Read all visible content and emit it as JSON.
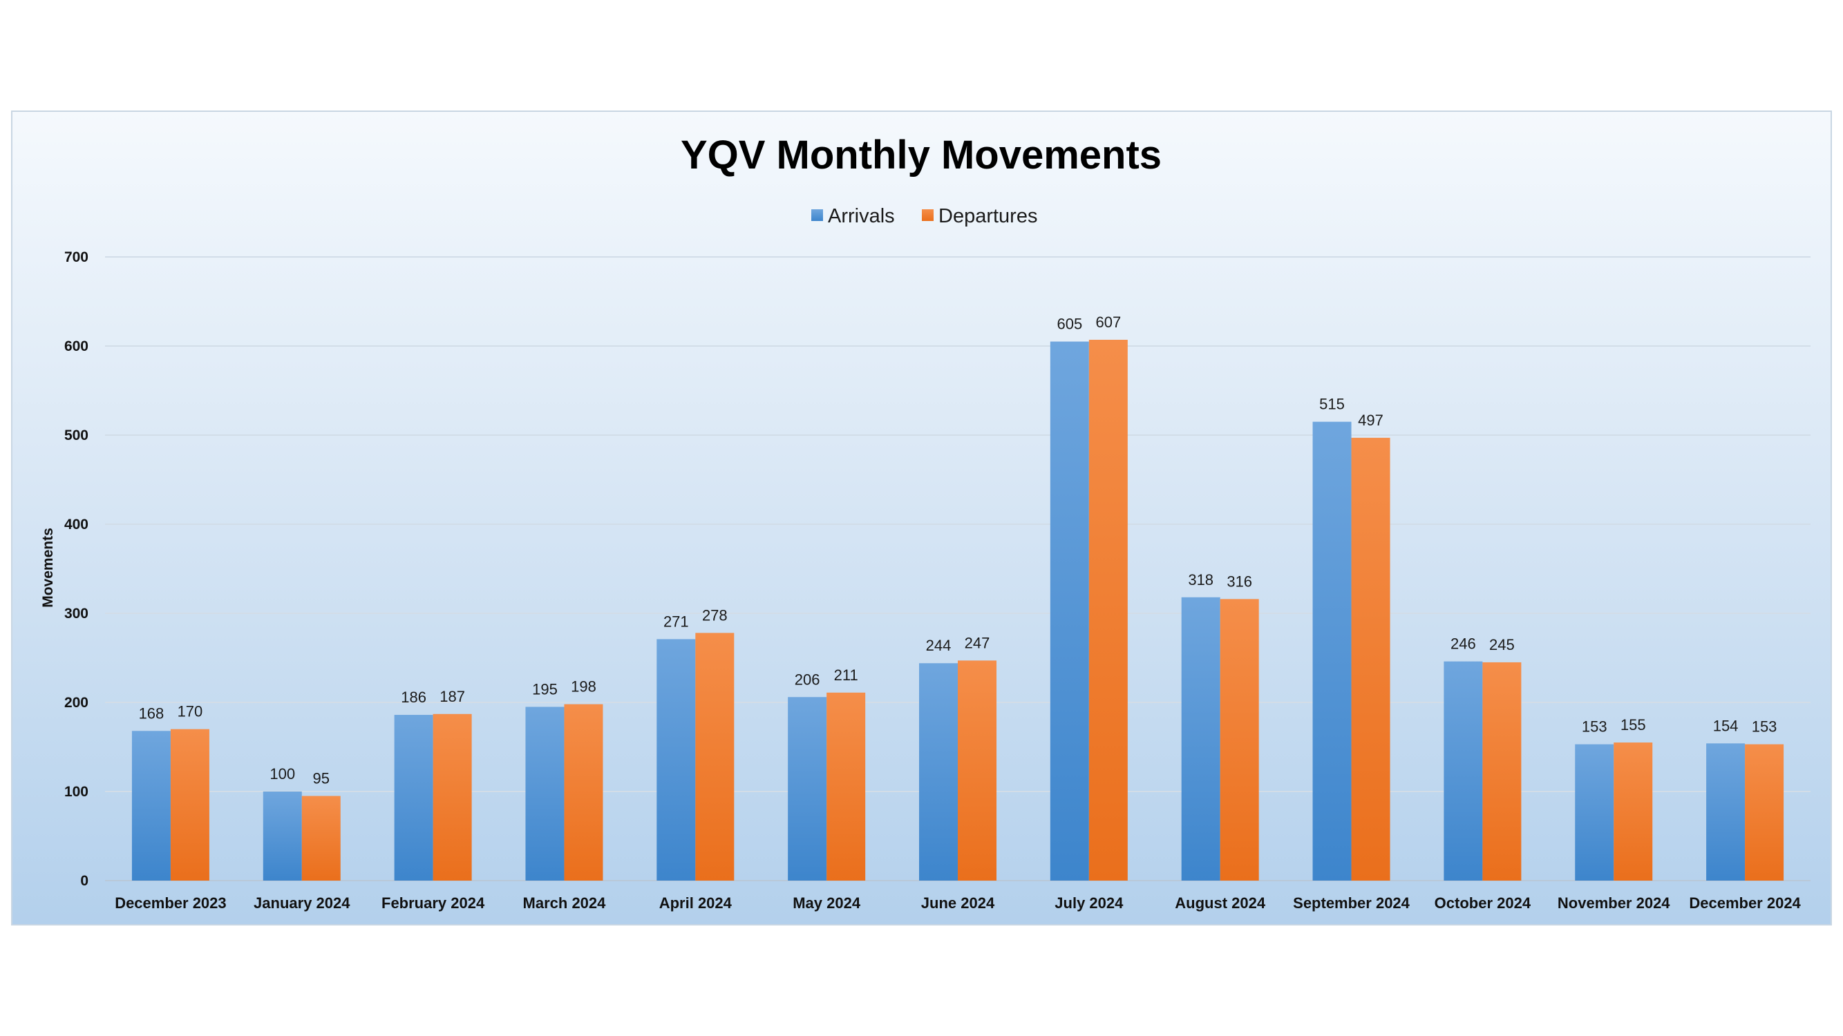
{
  "chart_data": {
    "type": "bar",
    "title": "YQV Monthly Movements",
    "xlabel": "",
    "ylabel": "Movements",
    "ylim": [
      0,
      700
    ],
    "yticks": [
      0,
      100,
      200,
      300,
      400,
      500,
      600,
      700
    ],
    "grid": true,
    "legend_position": "top-center",
    "categories": [
      "December 2023",
      "January 2024",
      "February 2024",
      "March 2024",
      "April 2024",
      "May 2024",
      "June 2024",
      "July 2024",
      "August 2024",
      "September 2024",
      "October 2024",
      "November 2024",
      "December 2024"
    ],
    "series": [
      {
        "name": "Arrivals",
        "color": "#4a8fd4",
        "values": [
          168,
          100,
          186,
          195,
          271,
          206,
          244,
          605,
          318,
          515,
          246,
          153,
          154
        ]
      },
      {
        "name": "Departures",
        "color": "#f07a2a",
        "values": [
          170,
          95,
          187,
          198,
          278,
          211,
          247,
          607,
          316,
          497,
          245,
          155,
          153
        ]
      }
    ]
  }
}
